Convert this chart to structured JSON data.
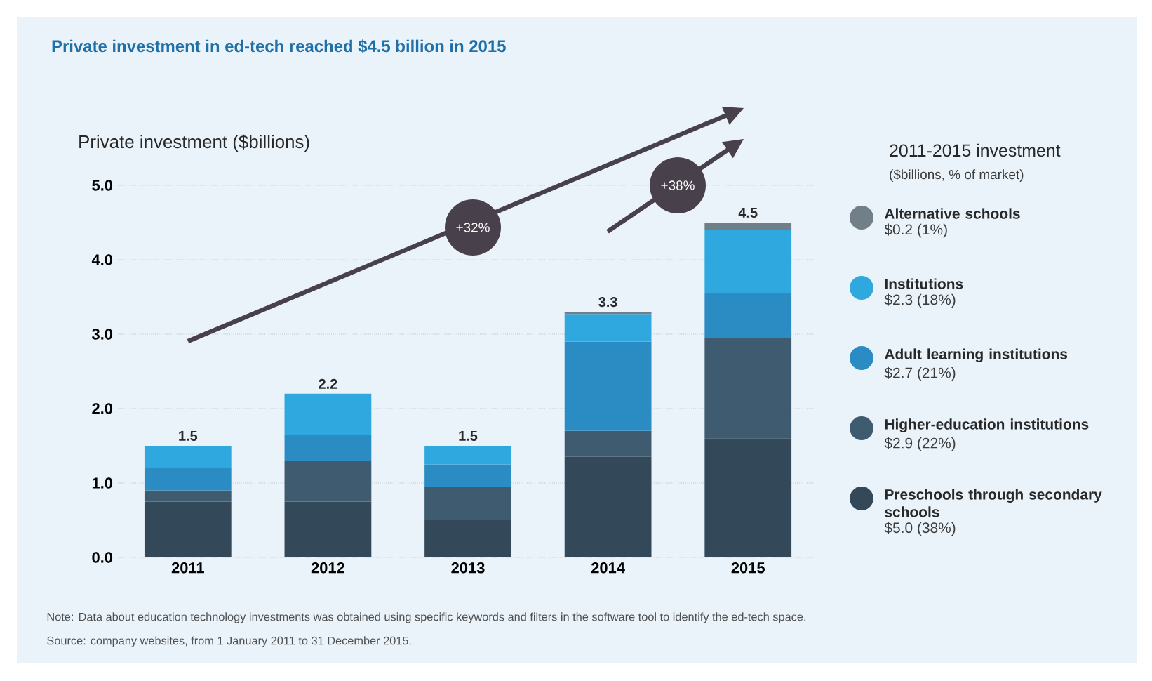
{
  "chart_data": {
    "type": "bar",
    "title": "Private investment in ed-tech reached $4.5 billion in 2015",
    "ylabel": "Private investment ($billions)",
    "legend_title": "2011-2015 investment",
    "categories": [
      "2011",
      "2012",
      "2013",
      "2014",
      "2015"
    ],
    "stacked": true,
    "series": [
      {
        "name": "Preschools through secondary schools",
        "color": "#33495a",
        "values": [
          0.75,
          0.75,
          0.5,
          1.35,
          1.6
        ]
      },
      {
        "name": "Higher-education institutions",
        "color": "#3e5b6f",
        "values": [
          0.15,
          0.55,
          0.45,
          0.35,
          1.35
        ]
      },
      {
        "name": "Adult learning institutions",
        "color": "#2b8cc4",
        "values": [
          0.3,
          0.35,
          0.3,
          1.2,
          0.6
        ]
      },
      {
        "name": "Institutions",
        "color": "#2ea8df",
        "values": [
          0.3,
          0.55,
          0.25,
          0.37,
          0.85
        ]
      },
      {
        "name": "Alternative schools",
        "color": "#707f88",
        "values": [
          null,
          null,
          null,
          0.03,
          0.1
        ]
      }
    ],
    "totals": [
      "1.5",
      "2.2",
      "1.5",
      "3.3",
      "4.5"
    ],
    "ylim": [
      0,
      5
    ],
    "yticks": [
      {
        "value": 0,
        "label": "0.0"
      },
      {
        "value": 1,
        "label": "1.0"
      },
      {
        "value": 2,
        "label": "2.0"
      },
      {
        "value": 3,
        "label": "3.0"
      },
      {
        "value": 4,
        "label": "4.0"
      },
      {
        "value": 5,
        "label": "5.0"
      }
    ],
    "grid": "y",
    "legend": "right",
    "annotations": [
      "($billions, % of market)",
      "$5.0 (38%)",
      "$2.9 (22%)",
      "$2.7 (21%)",
      "$2.3 (18%)",
      "$0.2 (1%)",
      "+32%",
      "+38%",
      "Note: Data about education technology investments was obtained using specific keywords and filters in the software tool to identify the ed-tech space.",
      "Source: company websites, from 1 January 2011 to 31 December 2015."
    ]
  }
}
